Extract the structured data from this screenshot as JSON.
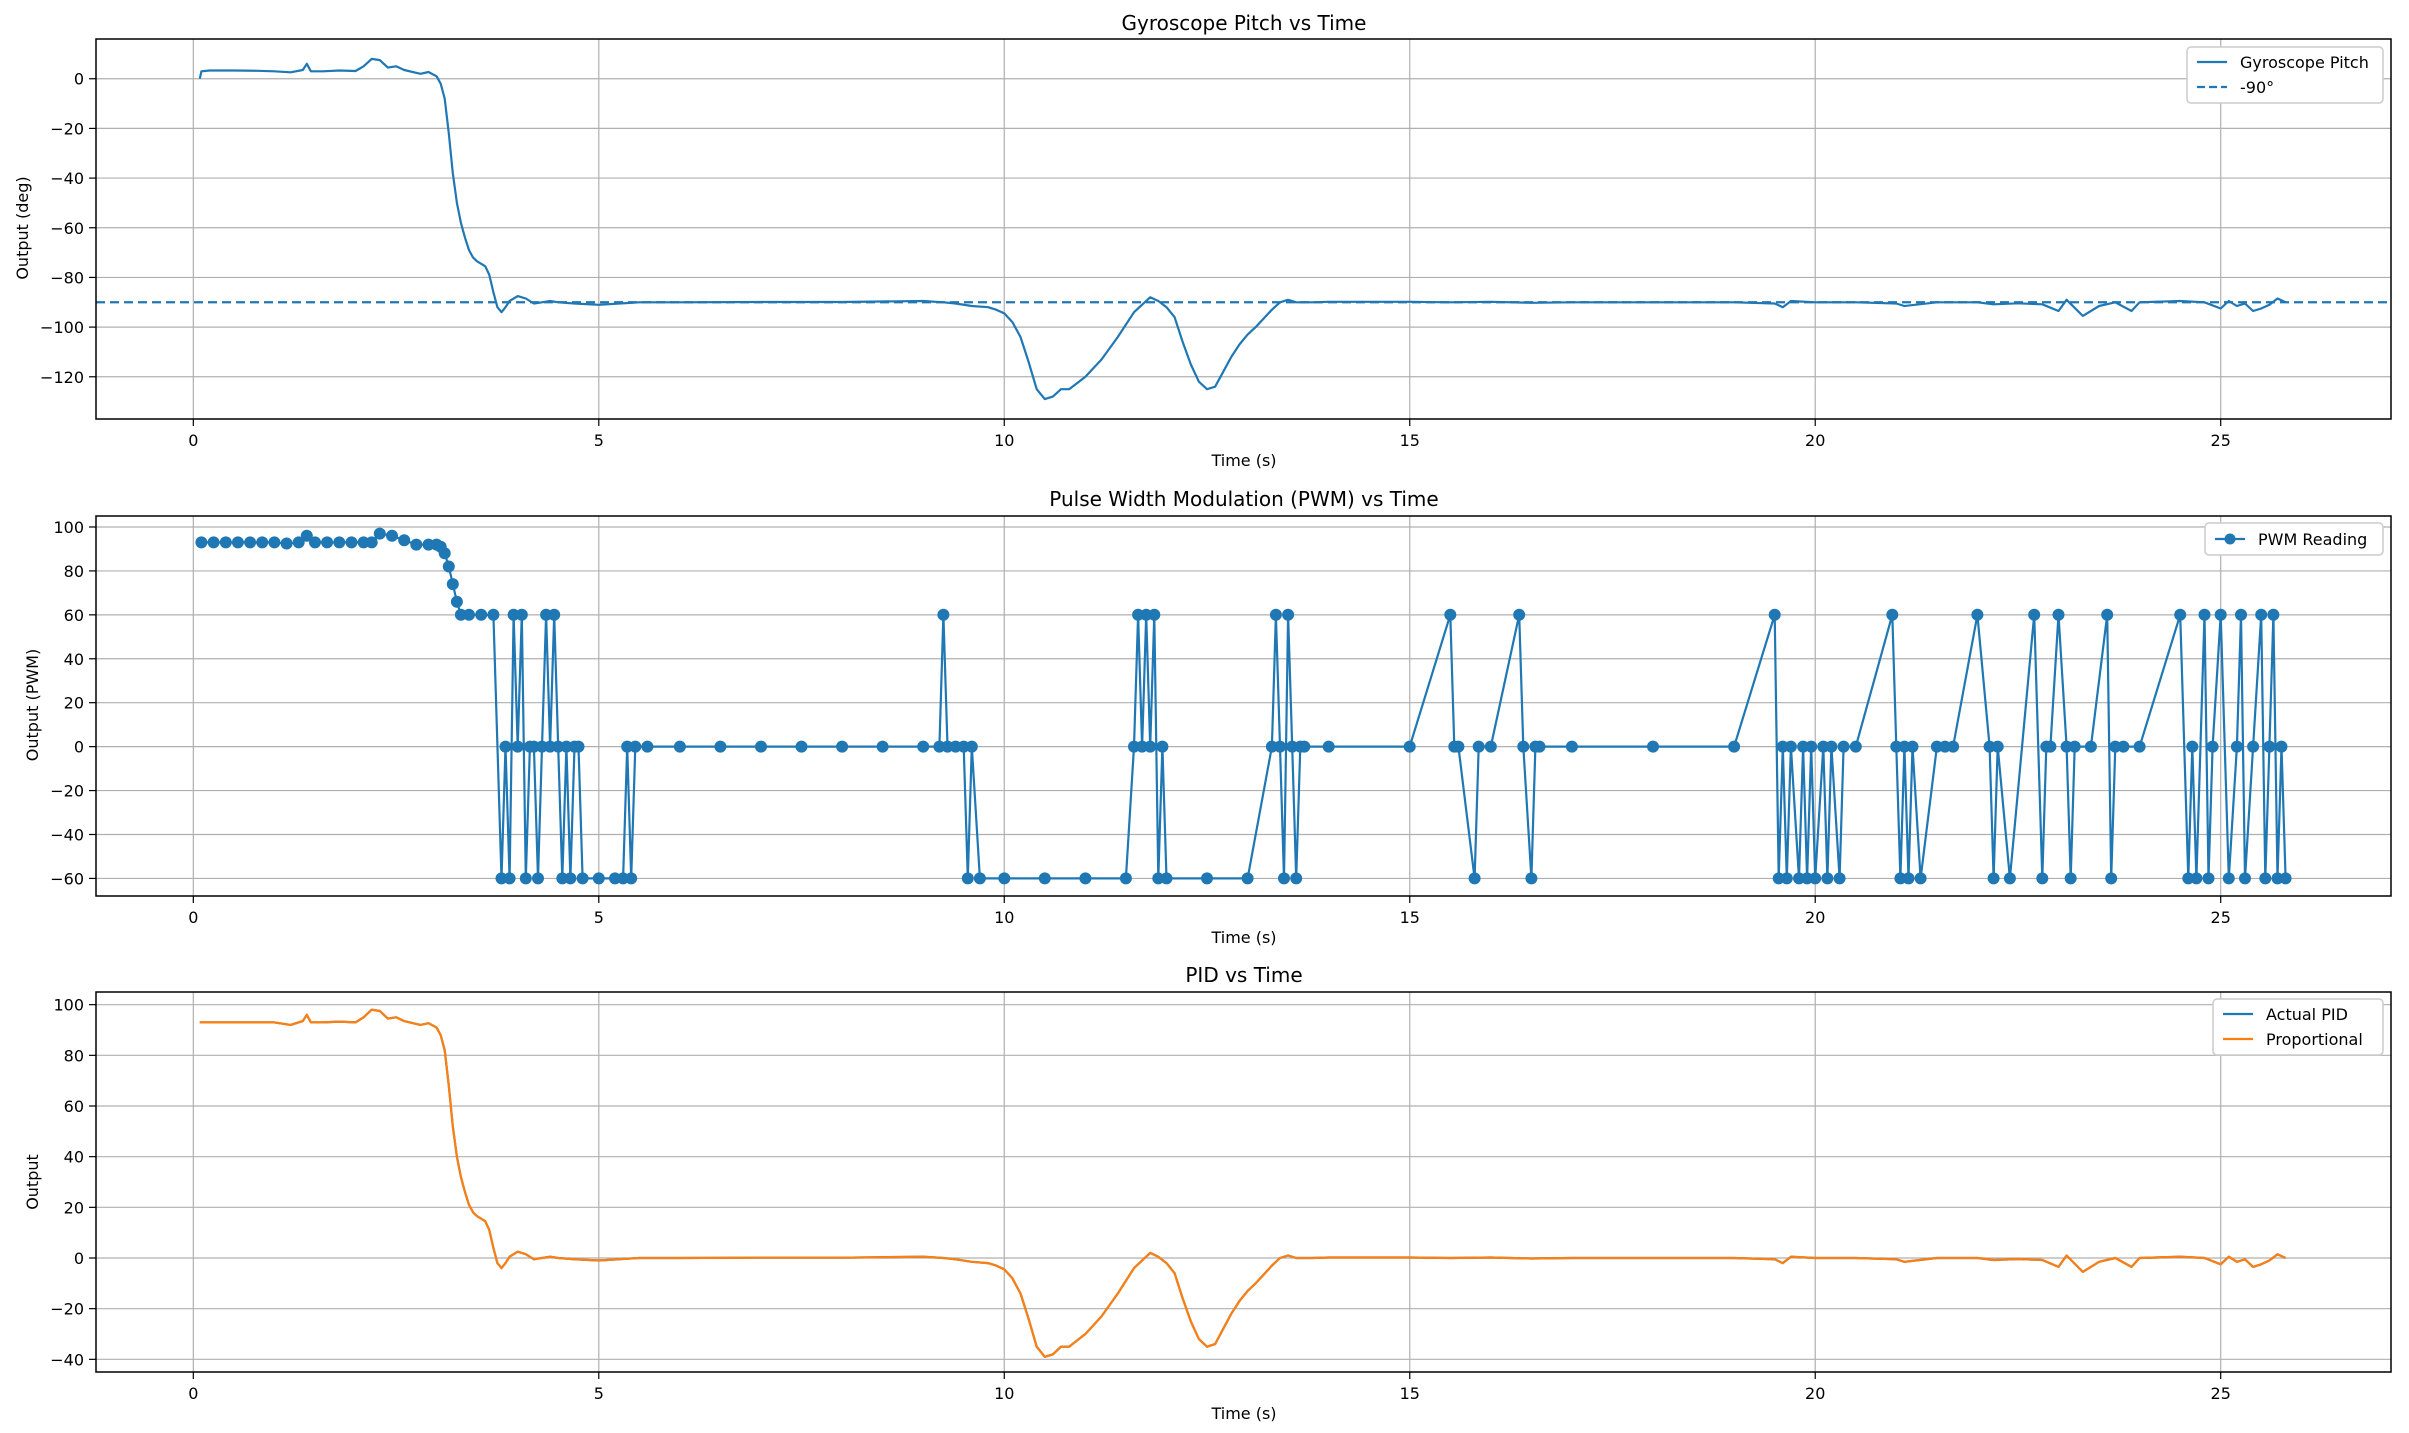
{
  "chart_data": [
    {
      "type": "line",
      "title": "Gyroscope Pitch vs Time",
      "xlabel": "Time (s)",
      "ylabel": "Output (deg)",
      "xlim": [
        -1.2,
        27.1
      ],
      "ylim": [
        -137,
        16
      ],
      "xticks": [
        0,
        5,
        10,
        15,
        20,
        25
      ],
      "yticks": [
        0,
        -20,
        -40,
        -60,
        -80,
        -100,
        -120
      ],
      "grid": true,
      "legend": "top-right",
      "series": [
        {
          "name": "Gyroscope Pitch",
          "color": "#1f77b4",
          "style": "solid",
          "x": [
            0.08,
            0.1,
            0.2,
            0.5,
            0.8,
            1.0,
            1.2,
            1.35,
            1.4,
            1.45,
            1.6,
            1.8,
            2.0,
            2.1,
            2.2,
            2.3,
            2.4,
            2.5,
            2.6,
            2.8,
            2.9,
            3.0,
            3.05,
            3.1,
            3.15,
            3.2,
            3.25,
            3.3,
            3.35,
            3.4,
            3.45,
            3.5,
            3.55,
            3.6,
            3.65,
            3.7,
            3.75,
            3.8,
            3.85,
            3.9,
            4.0,
            4.1,
            4.2,
            4.3,
            4.4,
            4.5,
            4.7,
            5.0,
            5.5,
            6.0,
            7.0,
            8.0,
            9.0,
            9.25,
            9.4,
            9.6,
            9.8,
            9.9,
            10.0,
            10.1,
            10.2,
            10.3,
            10.4,
            10.5,
            10.6,
            10.7,
            10.8,
            10.9,
            11.0,
            11.2,
            11.4,
            11.6,
            11.8,
            11.9,
            12.0,
            12.1,
            12.2,
            12.3,
            12.4,
            12.5,
            12.6,
            12.7,
            12.8,
            12.9,
            13.0,
            13.1,
            13.2,
            13.3,
            13.4,
            13.5,
            13.6,
            13.8,
            14.0,
            15.0,
            15.5,
            16.0,
            16.5,
            17.0,
            18.0,
            19.0,
            19.5,
            19.6,
            19.7,
            20.0,
            20.5,
            21.0,
            21.1,
            21.5,
            22.0,
            22.2,
            22.5,
            22.8,
            23.0,
            23.1,
            23.3,
            23.5,
            23.7,
            23.9,
            24.0,
            24.5,
            24.8,
            25.0,
            25.1,
            25.2,
            25.3,
            25.4,
            25.5,
            25.6,
            25.7,
            25.8
          ],
          "y": [
            0,
            3,
            3.3,
            3.3,
            3.2,
            3.0,
            2.6,
            3.5,
            6.0,
            3.0,
            3.0,
            3.3,
            3.1,
            5.0,
            8.0,
            7.5,
            4.5,
            5.0,
            3.5,
            2.0,
            2.7,
            1.0,
            -2.0,
            -8.0,
            -22,
            -38,
            -50,
            -58,
            -64,
            -69,
            -72,
            -73.5,
            -74.5,
            -75.5,
            -79,
            -86,
            -92,
            -94,
            -92,
            -89.5,
            -87.5,
            -88.5,
            -90.5,
            -90,
            -89.5,
            -90,
            -90.5,
            -91,
            -90,
            -90,
            -89.9,
            -89.9,
            -89.5,
            -90,
            -90.5,
            -91.5,
            -92,
            -93,
            -94.5,
            -98,
            -104,
            -114,
            -125,
            -129,
            -128,
            -125,
            -125,
            -122.5,
            -120,
            -113,
            -104,
            -94,
            -88,
            -89.5,
            -92,
            -96,
            -106,
            -115,
            -122,
            -125,
            -124,
            -118,
            -112,
            -107,
            -103,
            -100,
            -96.5,
            -93,
            -90,
            -89,
            -90,
            -90,
            -89.8,
            -89.8,
            -90,
            -89.8,
            -90.2,
            -90,
            -90,
            -90,
            -90.5,
            -92,
            -89.5,
            -90,
            -90,
            -90.5,
            -91.5,
            -90,
            -90,
            -90.8,
            -90.4,
            -90.8,
            -93.5,
            -89,
            -95.5,
            -91.5,
            -90,
            -93.5,
            -90,
            -89.5,
            -90,
            -92.5,
            -89.5,
            -91.5,
            -90.5,
            -93.5,
            -92.5,
            -91,
            -88.5,
            -90
          ]
        },
        {
          "name": "-90°",
          "color": "#1f77b4",
          "style": "dashed",
          "y_constant": -90
        }
      ]
    },
    {
      "type": "line",
      "title": "Pulse Width Modulation (PWM) vs Time",
      "xlabel": "Time (s)",
      "ylabel": "Output (PWM)",
      "xlim": [
        -1.2,
        27.1
      ],
      "ylim": [
        -68,
        105
      ],
      "xticks": [
        0,
        5,
        10,
        15,
        20,
        25
      ],
      "yticks": [
        100,
        80,
        60,
        40,
        20,
        0,
        -20,
        -40,
        -60
      ],
      "grid": true,
      "legend": "top-right",
      "series": [
        {
          "name": "PWM Reading",
          "color": "#1f77b4",
          "marker": "circle",
          "x": [
            0.1,
            0.25,
            0.4,
            0.55,
            0.7,
            0.85,
            1.0,
            1.15,
            1.3,
            1.4,
            1.5,
            1.65,
            1.8,
            1.95,
            2.1,
            2.2,
            2.3,
            2.45,
            2.6,
            2.75,
            2.9,
            3.0,
            3.05,
            3.1,
            3.15,
            3.2,
            3.25,
            3.3,
            3.4,
            3.55,
            3.7,
            3.8,
            3.85,
            3.9,
            3.95,
            4.0,
            4.05,
            4.1,
            4.15,
            4.2,
            4.25,
            4.3,
            4.35,
            4.4,
            4.45,
            4.5,
            4.55,
            4.6,
            4.65,
            4.7,
            4.75,
            4.8,
            5.0,
            5.2,
            5.3,
            5.35,
            5.4,
            5.45,
            5.6,
            6.0,
            6.5,
            7.0,
            7.5,
            8.0,
            8.5,
            9.0,
            9.2,
            9.25,
            9.3,
            9.4,
            9.5,
            9.55,
            9.6,
            9.7,
            10.0,
            10.5,
            11.0,
            11.5,
            11.6,
            11.65,
            11.7,
            11.75,
            11.8,
            11.85,
            11.9,
            11.95,
            12.0,
            12.5,
            13.0,
            13.3,
            13.35,
            13.4,
            13.45,
            13.5,
            13.55,
            13.6,
            13.65,
            13.7,
            14.0,
            15.0,
            15.5,
            15.55,
            15.6,
            15.8,
            15.85,
            16.0,
            16.35,
            16.4,
            16.5,
            16.55,
            16.6,
            17.0,
            18.0,
            19.0,
            19.5,
            19.55,
            19.6,
            19.65,
            19.7,
            19.8,
            19.85,
            19.9,
            19.95,
            20.0,
            20.1,
            20.15,
            20.2,
            20.3,
            20.35,
            20.5,
            20.95,
            21.0,
            21.05,
            21.1,
            21.15,
            21.2,
            21.3,
            21.5,
            21.6,
            21.7,
            22.0,
            22.15,
            22.2,
            22.25,
            22.4,
            22.7,
            22.8,
            22.85,
            22.9,
            23.0,
            23.1,
            23.15,
            23.2,
            23.4,
            23.6,
            23.65,
            23.7,
            23.8,
            24.0,
            24.5,
            24.6,
            24.65,
            24.7,
            24.8,
            24.85,
            24.9,
            25.0,
            25.1,
            25.2,
            25.25,
            25.3,
            25.4,
            25.5,
            25.55,
            25.6,
            25.65,
            25.7,
            25.75,
            25.8
          ],
          "y": [
            93,
            93,
            93,
            93,
            93,
            93,
            93,
            92.5,
            93,
            96,
            93,
            93,
            93,
            93,
            93,
            93,
            97,
            96,
            94,
            92,
            92,
            92,
            91,
            88,
            82,
            74,
            66,
            60,
            60,
            60,
            60,
            -60,
            0,
            -60,
            60,
            0,
            60,
            -60,
            0,
            0,
            -60,
            0,
            60,
            0,
            60,
            0,
            -60,
            0,
            -60,
            0,
            0,
            -60,
            -60,
            -60,
            -60,
            0,
            -60,
            0,
            0,
            0,
            0,
            0,
            0,
            0,
            0,
            0,
            0,
            60,
            0,
            0,
            0,
            -60,
            0,
            -60,
            -60,
            -60,
            -60,
            -60,
            0,
            60,
            0,
            60,
            0,
            60,
            -60,
            0,
            -60,
            -60,
            -60,
            0,
            60,
            0,
            -60,
            60,
            0,
            -60,
            0,
            0,
            0,
            0,
            60,
            0,
            0,
            -60,
            0,
            0,
            60,
            0,
            -60,
            0,
            0,
            0,
            0,
            0,
            60,
            -60,
            0,
            -60,
            0,
            -60,
            0,
            -60,
            0,
            -60,
            0,
            -60,
            0,
            -60,
            0,
            0,
            60,
            0,
            -60,
            0,
            -60,
            0,
            -60,
            0,
            0,
            0,
            60,
            0,
            -60,
            0,
            -60,
            60,
            -60,
            0,
            0,
            60,
            0,
            -60,
            0,
            0,
            60,
            -60,
            0,
            0,
            0,
            60,
            -60,
            0,
            -60,
            60,
            -60,
            0,
            60,
            -60,
            0,
            60,
            -60,
            0,
            60,
            -60,
            0,
            60,
            -60,
            0,
            -60
          ]
        }
      ]
    },
    {
      "type": "line",
      "title": "PID vs Time",
      "xlabel": "Time (s)",
      "ylabel": "Output",
      "xlim": [
        -1.2,
        27.1
      ],
      "ylim": [
        -45,
        105
      ],
      "xticks": [
        0,
        5,
        10,
        15,
        20,
        25
      ],
      "yticks": [
        100,
        80,
        60,
        40,
        20,
        0,
        -20,
        -40
      ],
      "grid": true,
      "legend": "top-right",
      "series": [
        {
          "name": "Actual PID",
          "color": "#1f77b4",
          "same_as": "Proportional"
        },
        {
          "name": "Proportional",
          "color": "#ff7f0e",
          "x": [
            0.08,
            0.2,
            0.5,
            0.8,
            1.0,
            1.2,
            1.35,
            1.4,
            1.45,
            1.6,
            1.8,
            2.0,
            2.1,
            2.2,
            2.3,
            2.4,
            2.5,
            2.6,
            2.8,
            2.9,
            3.0,
            3.05,
            3.1,
            3.15,
            3.2,
            3.25,
            3.3,
            3.35,
            3.4,
            3.45,
            3.5,
            3.55,
            3.6,
            3.65,
            3.7,
            3.75,
            3.8,
            3.85,
            3.9,
            4.0,
            4.1,
            4.2,
            4.3,
            4.4,
            4.5,
            4.7,
            5.0,
            5.5,
            6.0,
            7.0,
            8.0,
            9.0,
            9.25,
            9.4,
            9.6,
            9.8,
            9.9,
            10.0,
            10.1,
            10.2,
            10.3,
            10.4,
            10.5,
            10.6,
            10.7,
            10.8,
            10.9,
            11.0,
            11.2,
            11.4,
            11.6,
            11.8,
            11.9,
            12.0,
            12.1,
            12.2,
            12.3,
            12.4,
            12.5,
            12.6,
            12.7,
            12.8,
            12.9,
            13.0,
            13.1,
            13.2,
            13.3,
            13.4,
            13.5,
            13.6,
            13.8,
            14.0,
            15.0,
            15.5,
            16.0,
            16.5,
            17.0,
            18.0,
            19.0,
            19.5,
            19.6,
            19.7,
            20.0,
            20.5,
            21.0,
            21.1,
            21.5,
            22.0,
            22.2,
            22.5,
            22.8,
            23.0,
            23.1,
            23.3,
            23.5,
            23.7,
            23.9,
            24.0,
            24.5,
            24.8,
            25.0,
            25.1,
            25.2,
            25.3,
            25.4,
            25.5,
            25.6,
            25.7,
            25.8
          ],
          "y": [
            93,
            93,
            93,
            93,
            93,
            92,
            93.5,
            96,
            93,
            93,
            93.3,
            93,
            95,
            98,
            97.5,
            94.5,
            95,
            93.5,
            92,
            92.7,
            91,
            88,
            82,
            68,
            52,
            40,
            32,
            26,
            21,
            18,
            16.5,
            15.5,
            14.5,
            11,
            4,
            -2,
            -4,
            -2,
            0.5,
            2.5,
            1.5,
            -0.5,
            0,
            0.5,
            0,
            -0.5,
            -1,
            0,
            0,
            0.1,
            0.1,
            0.5,
            0,
            -0.5,
            -1.5,
            -2,
            -3,
            -4.5,
            -8,
            -14,
            -24,
            -35,
            -39,
            -38,
            -35,
            -35,
            -32.5,
            -30,
            -23,
            -14,
            -4,
            2,
            0.5,
            -2,
            -6,
            -16,
            -25,
            -32,
            -35,
            -34,
            -28,
            -22,
            -17,
            -13,
            -10,
            -6.5,
            -3,
            0,
            1,
            0,
            0,
            0.2,
            0.2,
            0,
            0.2,
            -0.2,
            0,
            0,
            0,
            -0.5,
            -2,
            0.5,
            0,
            0,
            -0.5,
            -1.5,
            0,
            0,
            -0.8,
            -0.4,
            -0.8,
            -3.5,
            1,
            -5.5,
            -1.5,
            0,
            -3.5,
            0,
            0.5,
            0,
            -2.5,
            0.5,
            -1.5,
            -0.5,
            -3.5,
            -2.5,
            -1,
            1.5,
            0
          ]
        }
      ]
    }
  ]
}
